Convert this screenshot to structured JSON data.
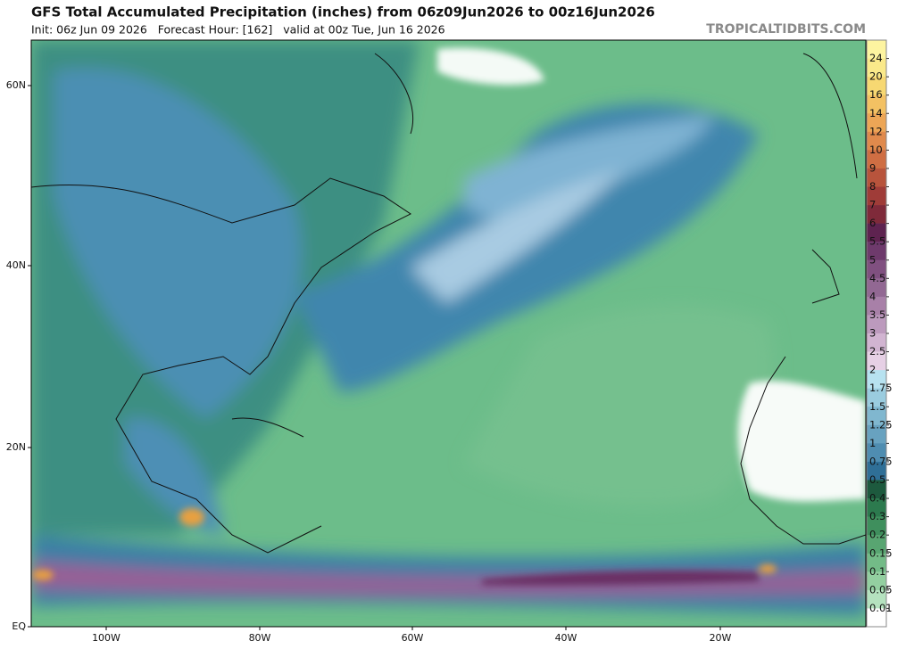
{
  "header": {
    "title": "GFS Total Accumulated Precipitation (inches) from 06z09Jun2026 to 00z16Jun2026",
    "subtitle": "Init: 06z Jun 09 2026   Forecast Hour: [162]   valid at 00z Tue, Jun 16 2026",
    "source": "TROPICALTIDBITS.COM"
  },
  "map": {
    "lat_labels": [
      "60N",
      "40N",
      "20N",
      "EQ"
    ],
    "lon_labels": [
      "100W",
      "80W",
      "60W",
      "40W",
      "20W"
    ]
  },
  "colorbar": {
    "labels": [
      24,
      20,
      16,
      14,
      12,
      10,
      9,
      8,
      7,
      6,
      5.5,
      5,
      4.5,
      4,
      3.5,
      3,
      2.5,
      2,
      1.75,
      1.5,
      1.25,
      1,
      0.75,
      0.5,
      0.4,
      0.3,
      0.2,
      0.15,
      0.1,
      0.05,
      0.01
    ],
    "colors": [
      "#fdf4a0",
      "#fae98a",
      "#f7d872",
      "#f3c163",
      "#eda656",
      "#e08a4c",
      "#cf6e43",
      "#b8543c",
      "#9f3c38",
      "#7f2a3a",
      "#5e2350",
      "#6e3a6c",
      "#805080",
      "#926893",
      "#a880a8",
      "#bc9abd",
      "#d1b4d1",
      "#e6d0e5",
      "#b7e2f0",
      "#9accdf",
      "#80b7cf",
      "#68a2c0",
      "#4f8db1",
      "#2f6f97",
      "#1d5a3e",
      "#2c7a4e",
      "#3f8f5d",
      "#58a571",
      "#73bb87",
      "#93cfa0",
      "#b5e2bf",
      "#ffffff"
    ]
  }
}
